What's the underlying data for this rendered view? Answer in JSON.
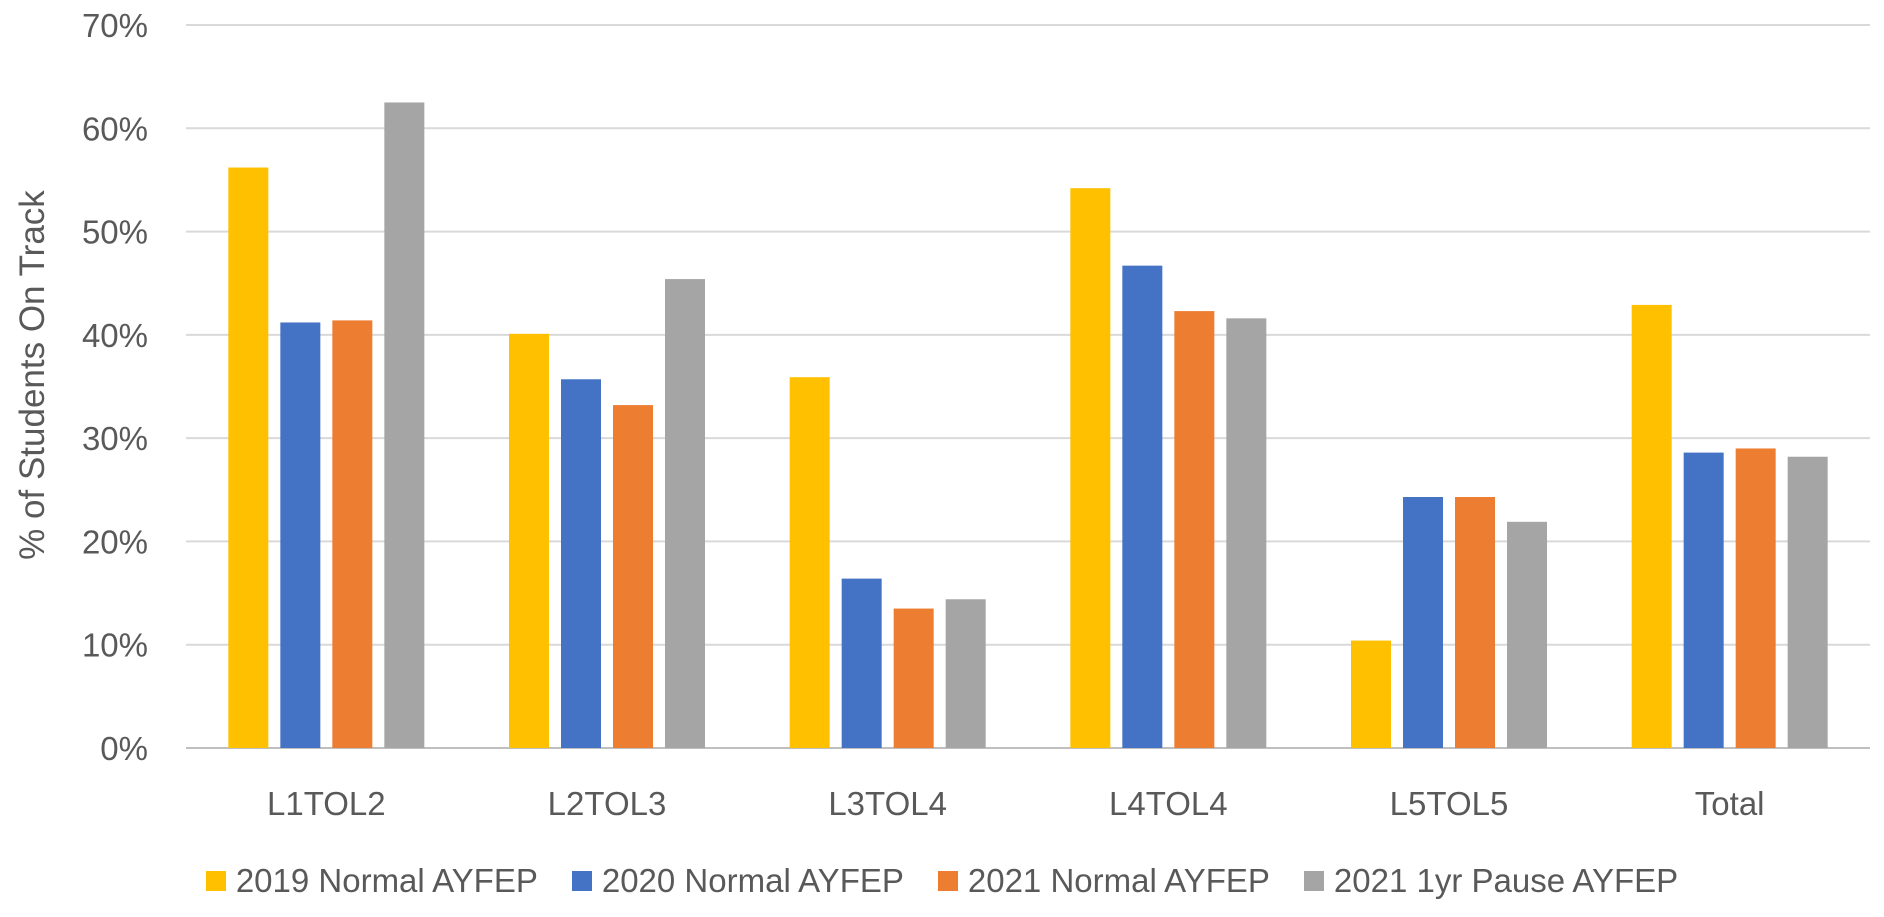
{
  "chart_data": {
    "type": "bar",
    "title": "",
    "xlabel": "",
    "ylabel": "% of Students On Track",
    "ylim": [
      0,
      70
    ],
    "yticks": [
      "0%",
      "10%",
      "20%",
      "30%",
      "40%",
      "50%",
      "60%",
      "70%"
    ],
    "grid": true,
    "legend_position": "bottom",
    "categories": [
      "L1TOL2",
      "L2TOL3",
      "L3TOL4",
      "L4TOL4",
      "L5TOL5",
      "Total"
    ],
    "series": [
      {
        "name": "2019 Normal AYFEP",
        "color": "#FFC000",
        "values": [
          56.2,
          40.1,
          35.9,
          54.2,
          10.4,
          42.9
        ]
      },
      {
        "name": "2020 Normal AYFEP",
        "color": "#4472C4",
        "values": [
          41.2,
          35.7,
          16.4,
          46.7,
          24.3,
          28.6
        ]
      },
      {
        "name": "2021 Normal AYFEP",
        "color": "#ED7D31",
        "values": [
          41.4,
          33.2,
          13.5,
          42.3,
          24.3,
          29.0
        ]
      },
      {
        "name": "2021 1yr Pause AYFEP",
        "color": "#A5A5A5",
        "values": [
          62.5,
          45.4,
          14.4,
          41.6,
          21.9,
          28.2
        ]
      }
    ]
  }
}
